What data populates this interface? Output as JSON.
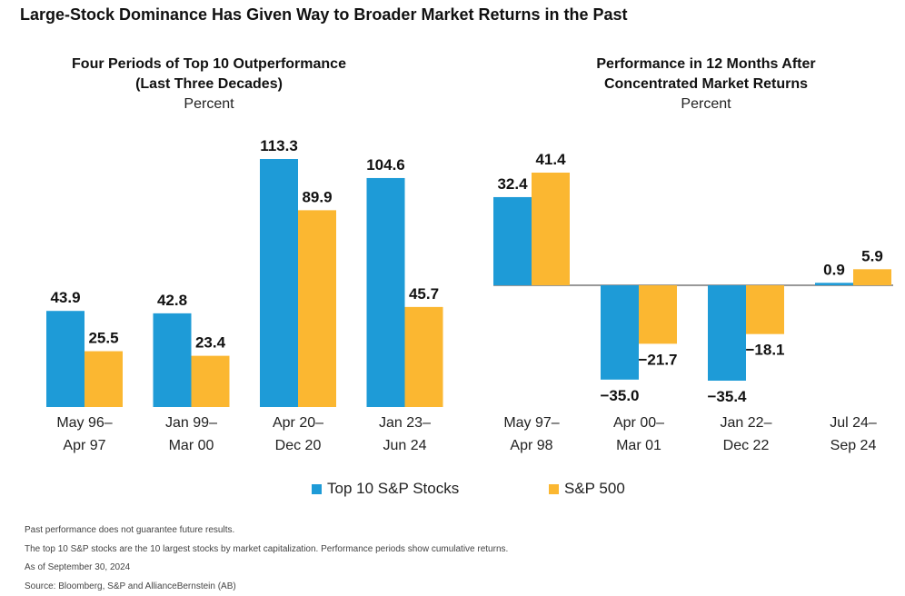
{
  "title": "Large-Stock Dominance Has Given Way to Broader Market Returns in the Past",
  "colors": {
    "top10": "#1e9bd7",
    "sp500": "#fbb731",
    "baseline": "#333333"
  },
  "legend": {
    "top10": "Top 10 S&P Stocks",
    "sp500": "S&P 500"
  },
  "notes": [
    "Past performance does not guarantee future results.",
    "The top 10 S&P stocks are the 10 largest stocks by market capitalization. Performance periods show cumulative returns.",
    "As of September 30, 2024",
    "Source: Bloomberg, S&P and AllianceBernstein (AB)"
  ],
  "chart_data": [
    {
      "type": "bar",
      "title": "Four Periods of Top 10 Outperformance (Last Three Decades)",
      "title_lines": [
        "Four Periods of Top 10 Outperformance",
        "(Last Three Decades)"
      ],
      "subtitle": "Percent",
      "categories": [
        [
          "May 96–",
          "Apr 97"
        ],
        [
          "Jan 99–",
          "Mar 00"
        ],
        [
          "Apr 20–",
          "Dec 20"
        ],
        [
          "Jan 23–",
          "Jun 24"
        ]
      ],
      "series": [
        {
          "name": "Top 10 S&P Stocks",
          "values": [
            43.9,
            42.8,
            113.3,
            104.6
          ],
          "labels": [
            "43.9",
            "42.8",
            "113.3",
            "104.6"
          ]
        },
        {
          "name": "S&P 500",
          "values": [
            25.5,
            23.4,
            89.9,
            45.7
          ],
          "labels": [
            "25.5",
            "23.4",
            "89.9",
            "45.7"
          ]
        }
      ],
      "ylim": [
        0,
        113.3
      ],
      "grid": false,
      "legend": "bottom"
    },
    {
      "type": "bar",
      "title": "Performance in 12 Months After Concentrated Market Returns",
      "title_lines": [
        "Performance in 12 Months After",
        "Concentrated Market Returns"
      ],
      "subtitle": "Percent",
      "categories": [
        [
          "May 97–",
          "Apr 98"
        ],
        [
          "Apr 00–",
          "Mar 01"
        ],
        [
          "Jan 22–",
          "Dec 22"
        ],
        [
          "Jul 24–",
          "Sep 24"
        ]
      ],
      "series": [
        {
          "name": "Top 10 S&P Stocks",
          "values": [
            32.4,
            -35.0,
            -35.4,
            0.9
          ],
          "labels": [
            "32.4",
            "−35.0",
            "−35.4",
            "0.9"
          ]
        },
        {
          "name": "S&P 500",
          "values": [
            41.4,
            -21.7,
            -18.1,
            5.9
          ],
          "labels": [
            "41.4",
            "−21.7",
            "−18.1",
            "5.9"
          ]
        }
      ],
      "ylim": [
        -35.4,
        41.4
      ],
      "grid": false,
      "legend": "bottom"
    }
  ]
}
